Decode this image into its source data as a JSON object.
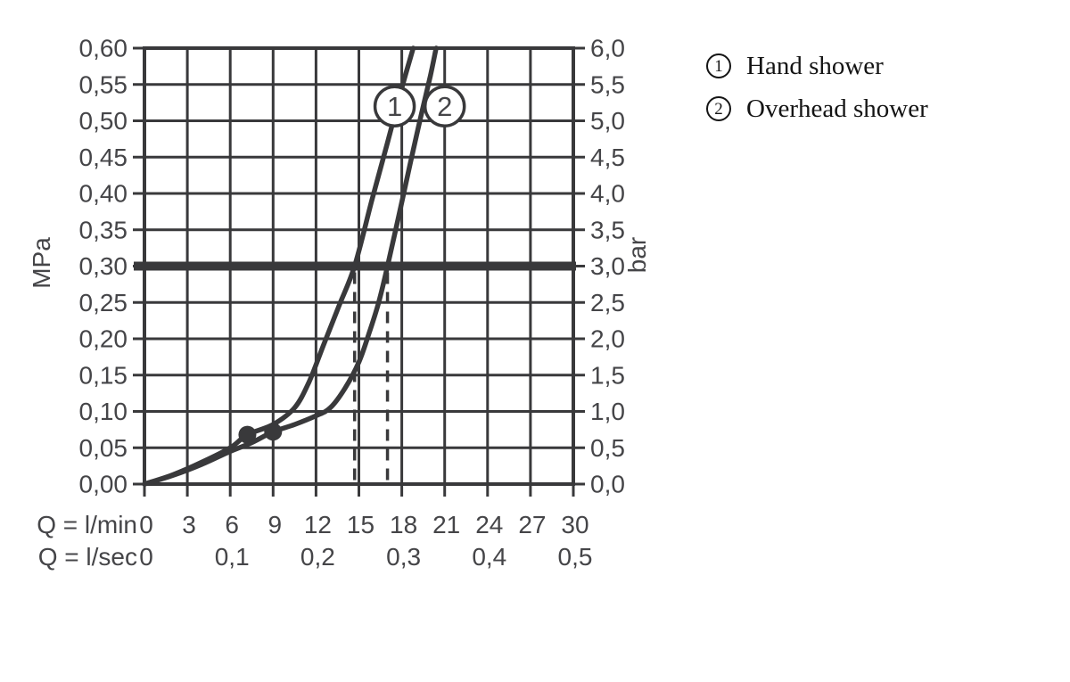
{
  "page": {
    "background": "#ffffff"
  },
  "legend": {
    "items": [
      {
        "number": "1",
        "label": "Hand shower"
      },
      {
        "number": "2",
        "label": "Overhead shower"
      }
    ]
  },
  "chart_data": {
    "type": "line",
    "x_axis": {
      "label": "Q = l/min",
      "max": 30,
      "values": [
        0,
        3,
        6,
        9,
        12,
        15,
        18,
        21,
        24,
        27,
        30
      ],
      "labels": [
        "0",
        "3",
        "6",
        "9",
        "12",
        "15",
        "18",
        "21",
        "24",
        "27",
        "30"
      ]
    },
    "x_axis_secondary": {
      "label": "Q = l/sec",
      "values": [
        0,
        6,
        12,
        18,
        24,
        30
      ],
      "labels": [
        "0",
        "0,1",
        "0,2",
        "0,3",
        "0,4",
        "0,5"
      ]
    },
    "y_axis_left": {
      "unit": "MPa",
      "max": 0.6,
      "values": [
        0.6,
        0.55,
        0.5,
        0.45,
        0.4,
        0.35,
        0.3,
        0.25,
        0.2,
        0.15,
        0.1,
        0.05,
        0.0
      ],
      "labels": [
        "0,60",
        "0,55",
        "0,50",
        "0,45",
        "0,40",
        "0,35",
        "0,30",
        "0,25",
        "0,20",
        "0,15",
        "0,10",
        "0,05",
        "0,00"
      ]
    },
    "y_axis_right": {
      "unit": "bar",
      "values": [
        6.0,
        5.5,
        5.0,
        4.5,
        4.0,
        3.5,
        3.0,
        2.5,
        2.0,
        1.5,
        1.0,
        0.5,
        0.0
      ],
      "labels": [
        "6,0",
        "5,5",
        "5,0",
        "4,5",
        "4,0",
        "3,5",
        "3,0",
        "2,5",
        "2,0",
        "1,5",
        "1,0",
        "0,5",
        "0,0"
      ]
    },
    "reference_line": {
      "mpa": 0.3,
      "bar": 3.0
    },
    "drop_lines_lmin": [
      14.7,
      17.0
    ],
    "series": [
      {
        "id": "1",
        "name": "Hand shower",
        "points": [
          [
            0,
            0
          ],
          [
            2,
            0.013
          ],
          [
            4,
            0.03
          ],
          [
            6,
            0.05
          ],
          [
            7.2,
            0.068
          ],
          [
            9,
            0.082
          ],
          [
            10.5,
            0.105
          ],
          [
            11.5,
            0.14
          ],
          [
            12.5,
            0.19
          ],
          [
            13.6,
            0.245
          ],
          [
            14.7,
            0.3
          ],
          [
            15.9,
            0.39
          ],
          [
            17.0,
            0.47
          ],
          [
            18.0,
            0.545
          ],
          [
            18.8,
            0.6
          ]
        ],
        "marker": {
          "q": 7.2,
          "p": 0.068
        },
        "callout": {
          "q": 17.5,
          "p": 0.52
        }
      },
      {
        "id": "2",
        "name": "Overhead shower",
        "points": [
          [
            0,
            0
          ],
          [
            2,
            0.012
          ],
          [
            4,
            0.027
          ],
          [
            6,
            0.045
          ],
          [
            7.5,
            0.057
          ],
          [
            9,
            0.072
          ],
          [
            10.5,
            0.082
          ],
          [
            12,
            0.094
          ],
          [
            13,
            0.105
          ],
          [
            14,
            0.131
          ],
          [
            15,
            0.168
          ],
          [
            15.7,
            0.207
          ],
          [
            16.4,
            0.251
          ],
          [
            17.0,
            0.3
          ],
          [
            17.8,
            0.37
          ],
          [
            18.6,
            0.442
          ],
          [
            19.3,
            0.503
          ],
          [
            20.0,
            0.562
          ],
          [
            20.4,
            0.6
          ]
        ],
        "marker": {
          "q": 9.0,
          "p": 0.072
        },
        "callout": {
          "q": 21.0,
          "p": 0.52
        }
      }
    ],
    "colors": {
      "line": "#39393b",
      "grid": "#39393b",
      "text": "#454548",
      "legend_text": "#141414",
      "background": "#ffffff"
    }
  }
}
